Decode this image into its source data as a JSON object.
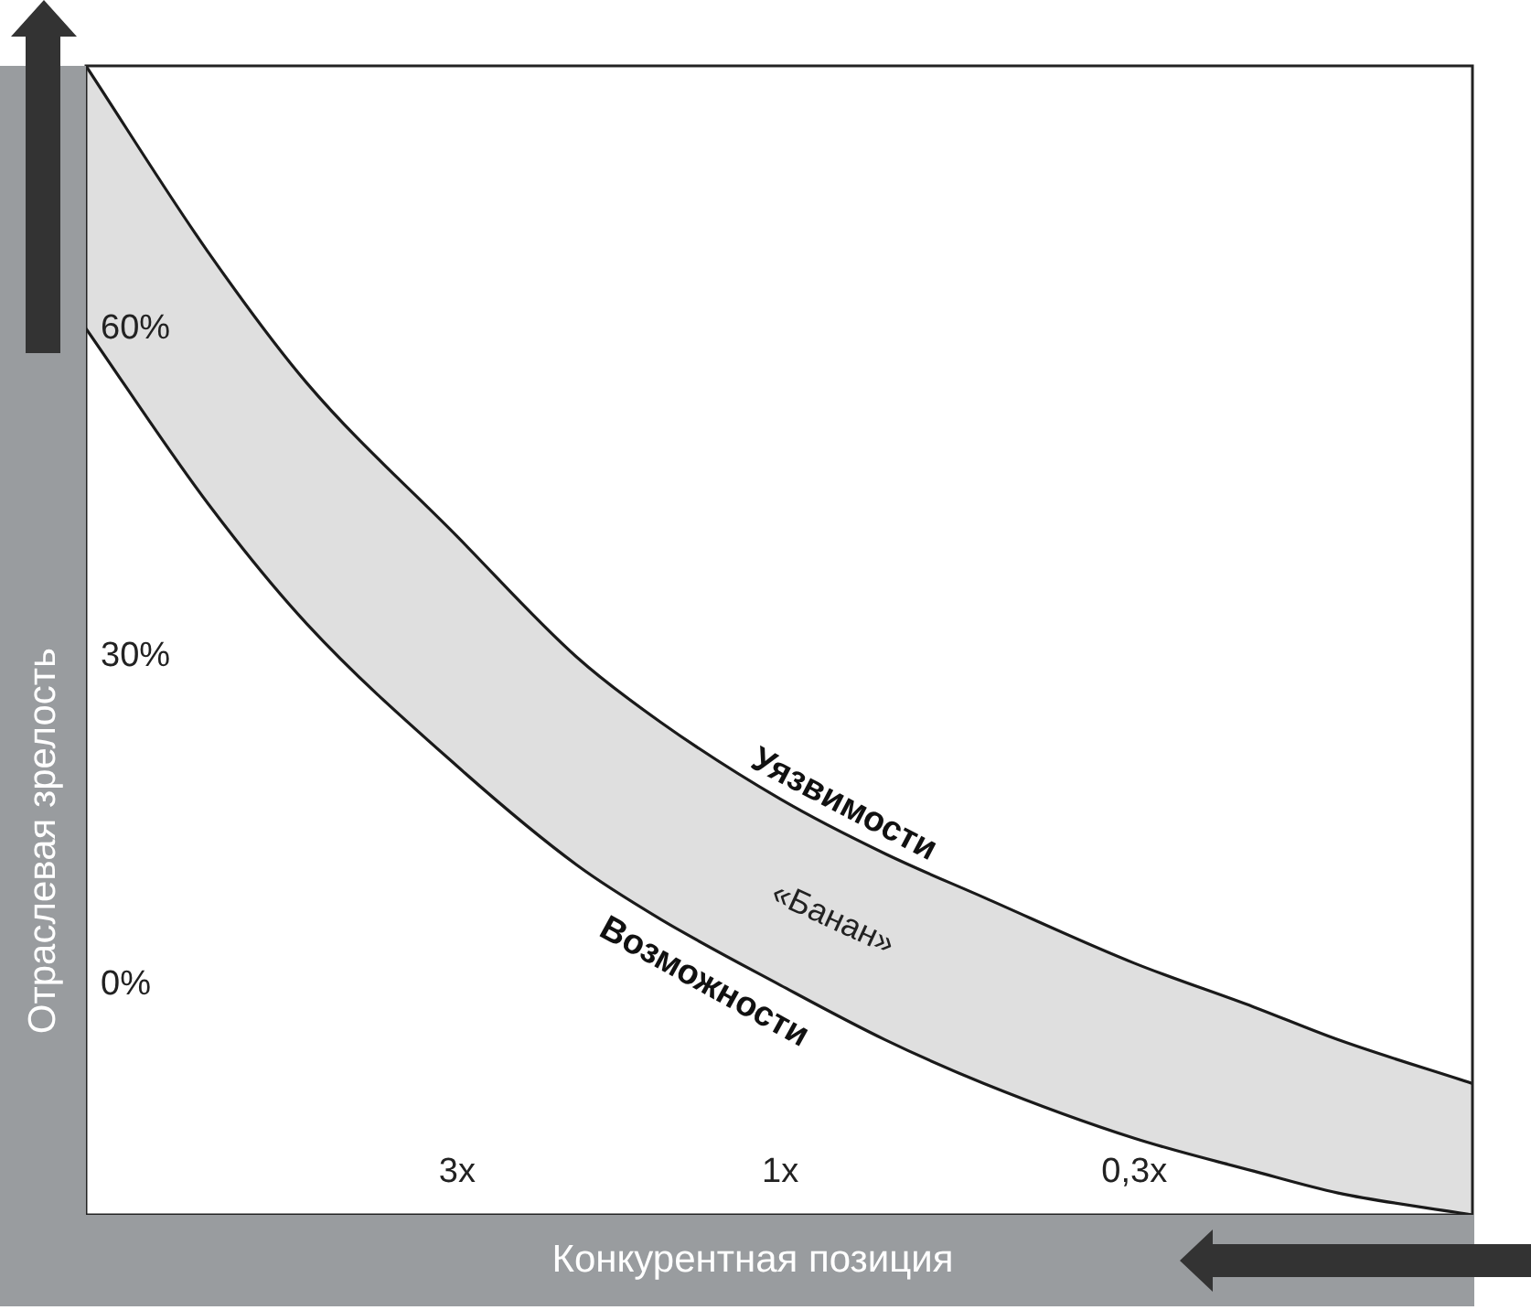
{
  "chart_data": {
    "type": "line",
    "xlabel": "Конкурентная позиция",
    "ylabel": "Отраслевая зрелость",
    "xlim": [
      10.6,
      0.095
    ],
    "ylim": [
      -21,
      84
    ],
    "log": "x",
    "xticks": [
      {
        "value": 3,
        "label": "3x"
      },
      {
        "value": 1,
        "label": "1x"
      },
      {
        "value": 0.3,
        "label": "0,3x"
      }
    ],
    "yticks": [
      {
        "value": 0,
        "label": "0%"
      },
      {
        "value": 30,
        "label": "30%"
      },
      {
        "value": 60,
        "label": "60%"
      }
    ],
    "grid": false,
    "legend": false,
    "marker": "none",
    "line_style": "solid",
    "series": [
      {
        "name": "Уязвимости",
        "color": "#1a1a1a",
        "x": [
          10.6,
          7,
          5,
          3,
          2,
          1.5,
          1,
          0.7,
          0.5,
          0.3,
          0.2,
          0.15,
          0.095
        ],
        "values": [
          84,
          67,
          55,
          41,
          30,
          24,
          17,
          12,
          8,
          2,
          -2,
          -5,
          -9
        ],
        "upper": [
          84,
          67,
          55,
          41,
          30,
          24,
          17,
          12,
          8,
          2,
          -2,
          -5,
          -9
        ],
        "lower": [
          60,
          44,
          33,
          20,
          11,
          6,
          0,
          -5,
          -9,
          -14,
          -17,
          -19,
          -21
        ]
      },
      {
        "name": "Возможности",
        "color": "#1a1a1a",
        "x": [
          10.6,
          7,
          5,
          3,
          2,
          1.5,
          1,
          0.7,
          0.5,
          0.3,
          0.2,
          0.15,
          0.095
        ],
        "values": [
          60,
          44,
          33,
          20,
          11,
          6,
          0,
          -5,
          -9,
          -14,
          -17,
          -19,
          -21
        ]
      }
    ],
    "annotations": [
      "«Банан»"
    ]
  }
}
